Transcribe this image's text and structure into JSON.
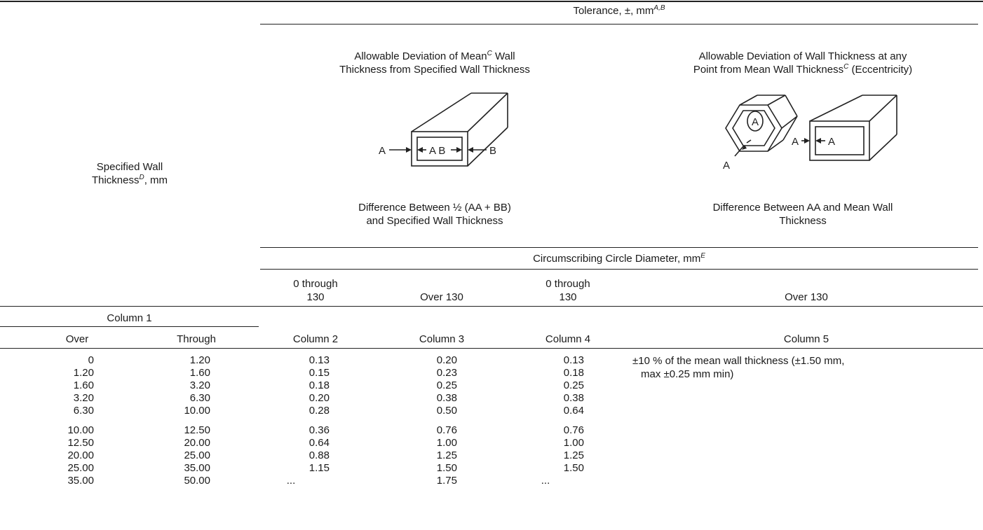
{
  "header": {
    "tolerance": "Tolerance, ±, mm",
    "tolerance_sup": "A,B",
    "specified_wall_line1": "Specified Wall",
    "specified_wall_line2": "Thickness",
    "specified_wall_sup": "D",
    "specified_wall_unit": ", mm",
    "mean_dev_line1_pre": "Allowable Deviation of Mean",
    "mean_dev_line1_sup": "C",
    "mean_dev_line1_post": " Wall",
    "mean_dev_line2": "Thickness from Specified Wall Thickness",
    "ecc_line1": "Allowable Deviation of Wall Thickness at any",
    "ecc_line2_pre": "Point from Mean Wall Thickness",
    "ecc_line2_sup": "C",
    "ecc_line2_post": " (Eccentricity)",
    "diff1_line1": "Difference Between ½ (AA + BB)",
    "diff1_line2": "and Specified Wall Thickness",
    "diff2_line1": "Difference Between AA and Mean Wall",
    "diff2_line2": "Thickness",
    "circ": "Circumscribing Circle Diameter, mm",
    "circ_sup": "E",
    "range_a_line1": "0 through",
    "range_a_line2": "130",
    "over130_a": "Over 130",
    "range_b_line1": "0 through",
    "range_b_line2": "130",
    "over130_b": "Over 130",
    "column1": "Column 1",
    "over": "Over",
    "through": "Through",
    "column2": "Column 2",
    "column3": "Column 3",
    "column4": "Column 4",
    "column5": "Column 5"
  },
  "figure_labels": {
    "a_left": "A",
    "ab_inner": "A B",
    "b_right": "B",
    "hex_a_inner": "A",
    "hex_a_outer": "A",
    "rect_a_outer": "A",
    "rect_a_inner": "A"
  },
  "rows": [
    {
      "over": "0",
      "through": "1.20",
      "c2": "0.13",
      "c3": "0.20",
      "c4": "0.13"
    },
    {
      "over": "1.20",
      "through": "1.60",
      "c2": "0.15",
      "c3": "0.23",
      "c4": "0.18"
    },
    {
      "over": "1.60",
      "through": "3.20",
      "c2": "0.18",
      "c3": "0.25",
      "c4": "0.25"
    },
    {
      "over": "3.20",
      "through": "6.30",
      "c2": "0.20",
      "c3": "0.38",
      "c4": "0.38"
    },
    {
      "over": "6.30",
      "through": "10.00",
      "c2": "0.28",
      "c3": "0.50",
      "c4": "0.64"
    },
    {
      "over": "10.00",
      "through": "12.50",
      "c2": "0.36",
      "c3": "0.76",
      "c4": "0.76"
    },
    {
      "over": "12.50",
      "through": "20.00",
      "c2": "0.64",
      "c3": "1.00",
      "c4": "1.00"
    },
    {
      "over": "20.00",
      "through": "25.00",
      "c2": "0.88",
      "c3": "1.25",
      "c4": "1.25"
    },
    {
      "over": "25.00",
      "through": "35.00",
      "c2": "1.15",
      "c3": "1.50",
      "c4": "1.50"
    },
    {
      "over": "35.00",
      "through": "50.00",
      "c2": "...",
      "c3": "1.75",
      "c4": "..."
    }
  ],
  "column5_note_line1": "±10 % of the mean wall thickness (±1.50 mm,",
  "column5_note_line2": "max ±0.25 mm min)"
}
